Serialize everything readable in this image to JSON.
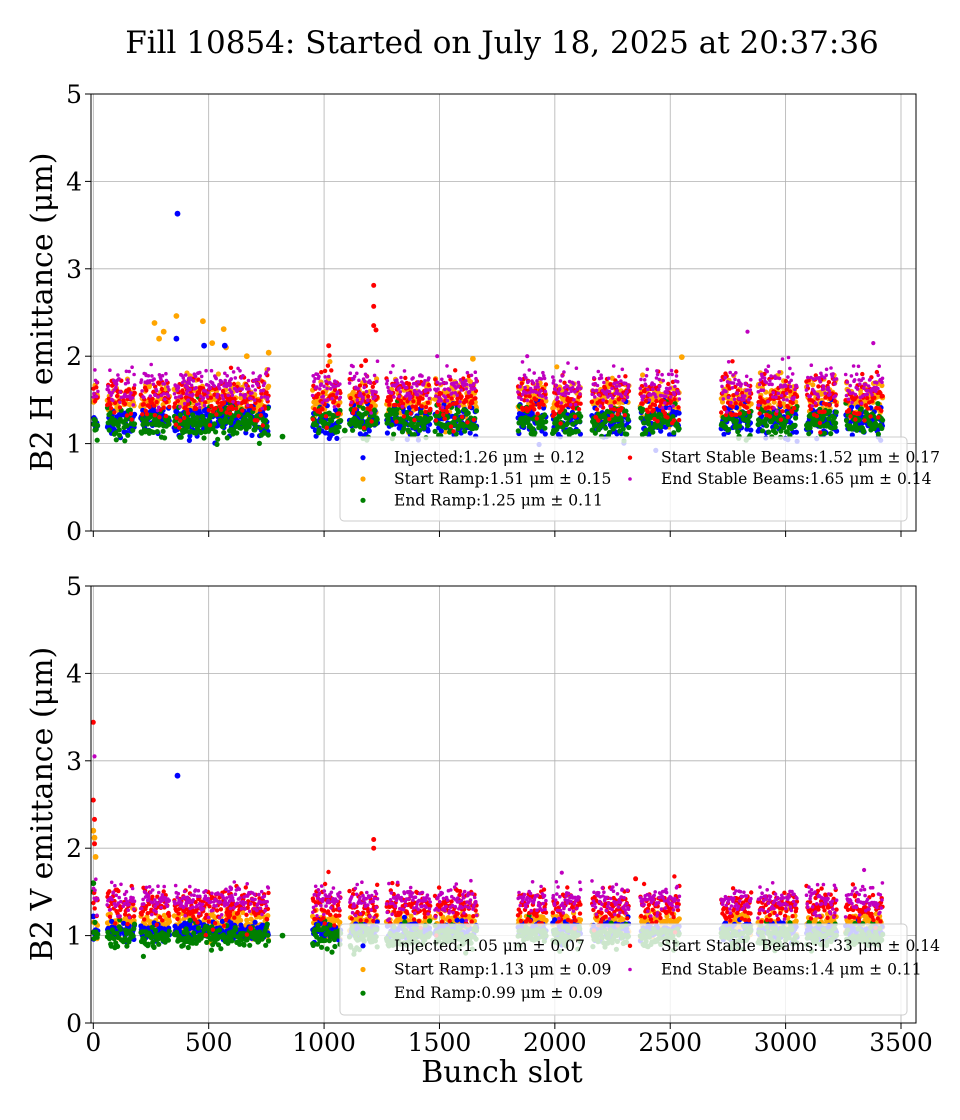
{
  "title": "Fill 10854: Started on July 18, 2025 at 20:37:36",
  "xlabel": "Bunch slot",
  "chart_data": [
    {
      "type": "scatter",
      "panel": "top",
      "ylabel": "B2 H emittance (μm)",
      "xlim": [
        -10,
        3565
      ],
      "ylim": [
        0,
        5
      ],
      "x_ticks": [
        0,
        500,
        1000,
        1500,
        2000,
        2500,
        3000,
        3500
      ],
      "y_ticks": [
        0,
        1,
        2,
        3,
        4,
        5
      ],
      "x_tick_labels_visible": false,
      "grid": true,
      "legend_position": "lower-right",
      "trains": [
        [
          0,
          20
        ],
        [
          60,
          120
        ],
        [
          130,
          180
        ],
        [
          205,
          330
        ],
        [
          350,
          420
        ],
        [
          400,
          460
        ],
        [
          460,
          600
        ],
        [
          590,
          760
        ],
        [
          950,
          1070
        ],
        [
          1110,
          1230
        ],
        [
          1270,
          1460
        ],
        [
          1480,
          1660
        ],
        [
          1840,
          1960
        ],
        [
          1990,
          2110
        ],
        [
          2160,
          2320
        ],
        [
          2370,
          2540
        ],
        [
          2720,
          2850
        ],
        [
          2880,
          3050
        ],
        [
          3090,
          3220
        ],
        [
          3260,
          3420
        ]
      ],
      "series": [
        {
          "name": "Start Ramp",
          "label_value": "1.51",
          "label_std": "0.15",
          "mean": 1.51,
          "std": 0.15,
          "color": "#ffa500",
          "radius": 2.6,
          "outliers": [
            [
              265,
              2.38
            ],
            [
              285,
              2.2
            ],
            [
              305,
              2.28
            ],
            [
              360,
              2.46
            ],
            [
              475,
              2.4
            ],
            [
              515,
              2.15
            ],
            [
              565,
              2.31
            ],
            [
              575,
              2.1
            ],
            [
              665,
              2.0
            ],
            [
              760,
              2.04
            ],
            [
              1645,
              1.97
            ],
            [
              2550,
              1.99
            ]
          ]
        },
        {
          "name": "Injected",
          "label_value": "1.26",
          "label_std": "0.12",
          "mean": 1.26,
          "std": 0.12,
          "color": "#0000ff",
          "radius": 2.6,
          "outliers": [
            [
              365,
              3.63
            ],
            [
              360,
              2.2
            ],
            [
              480,
              2.12
            ],
            [
              570,
              2.12
            ]
          ]
        },
        {
          "name": "End Ramp",
          "label_value": "1.25",
          "label_std": "0.11",
          "mean": 1.25,
          "std": 0.11,
          "color": "#008000",
          "radius": 2.6,
          "outliers": [
            [
              820,
              1.08
            ],
            [
              1090,
              1.15
            ]
          ]
        },
        {
          "name": "Start Stable Beams",
          "label_value": "1.52",
          "label_std": "0.17",
          "mean": 1.52,
          "std": 0.17,
          "color": "#ff0000",
          "radius": 2.2,
          "outliers": [
            [
              1215,
              2.81
            ],
            [
              1215,
              2.57
            ],
            [
              1215,
              2.35
            ],
            [
              1225,
              2.3
            ],
            [
              1020,
              2.12
            ],
            [
              1180,
              1.95
            ]
          ]
        },
        {
          "name": "End Stable Beams",
          "label_value": "1.65",
          "label_std": "0.14",
          "mean": 1.65,
          "std": 0.14,
          "color": "#bf00bf",
          "radius": 1.8,
          "outliers": [
            [
              2835,
              2.28
            ],
            [
              3380,
              2.15
            ],
            [
              1490,
              2.0
            ],
            [
              1880,
              2.0
            ]
          ]
        }
      ],
      "legend_rows": [
        [
          "Injected",
          "Start Stable Beams"
        ],
        [
          "Start Ramp",
          "End Stable Beams"
        ],
        [
          "End Ramp",
          null
        ]
      ]
    },
    {
      "type": "scatter",
      "panel": "bottom",
      "ylabel": "B2 V emittance (μm)",
      "xlim": [
        -10,
        3565
      ],
      "ylim": [
        0,
        5
      ],
      "x_ticks": [
        0,
        500,
        1000,
        1500,
        2000,
        2500,
        3000,
        3500
      ],
      "x_tick_labels": [
        "0",
        "500",
        "1000",
        "1500",
        "2000",
        "2500",
        "3000",
        "3500"
      ],
      "y_ticks": [
        0,
        1,
        2,
        3,
        4,
        5
      ],
      "grid": true,
      "legend_position": "lower-right",
      "trains": [
        [
          0,
          20
        ],
        [
          60,
          120
        ],
        [
          130,
          180
        ],
        [
          205,
          330
        ],
        [
          350,
          420
        ],
        [
          400,
          460
        ],
        [
          460,
          600
        ],
        [
          590,
          760
        ],
        [
          950,
          1070
        ],
        [
          1110,
          1230
        ],
        [
          1270,
          1460
        ],
        [
          1480,
          1660
        ],
        [
          1840,
          1960
        ],
        [
          1990,
          2110
        ],
        [
          2160,
          2320
        ],
        [
          2370,
          2540
        ],
        [
          2720,
          2850
        ],
        [
          2880,
          3050
        ],
        [
          3090,
          3220
        ],
        [
          3260,
          3420
        ]
      ],
      "series": [
        {
          "name": "Start Ramp",
          "label_value": "1.13",
          "label_std": "0.09",
          "mean": 1.13,
          "std": 0.09,
          "color": "#ffa500",
          "radius": 2.6,
          "outliers": [
            [
              0,
              2.2
            ],
            [
              5,
              2.12
            ],
            [
              10,
              1.9
            ]
          ]
        },
        {
          "name": "Injected",
          "label_value": "1.05",
          "label_std": "0.07",
          "mean": 1.05,
          "std": 0.07,
          "color": "#0000ff",
          "radius": 2.6,
          "outliers": [
            [
              365,
              2.83
            ],
            [
              0,
              1.22
            ]
          ]
        },
        {
          "name": "End Ramp",
          "label_value": "0.99",
          "label_std": "0.09",
          "mean": 0.99,
          "std": 0.09,
          "color": "#008000",
          "radius": 2.6,
          "outliers": [
            [
              0,
              1.6
            ],
            [
              0,
              1.5
            ],
            [
              820,
              1.0
            ]
          ]
        },
        {
          "name": "Start Stable Beams",
          "label_value": "1.33",
          "label_std": "0.14",
          "mean": 1.33,
          "std": 0.14,
          "color": "#ff0000",
          "radius": 2.2,
          "outliers": [
            [
              0,
              3.44
            ],
            [
              0,
              2.55
            ],
            [
              5,
              2.33
            ],
            [
              5,
              2.05
            ],
            [
              1215,
              2.1
            ],
            [
              1215,
              2.0
            ],
            [
              2350,
              1.65
            ]
          ]
        },
        {
          "name": "End Stable Beams",
          "label_value": "1.4",
          "label_std": "0.11",
          "mean": 1.4,
          "std": 0.11,
          "color": "#bf00bf",
          "radius": 1.8,
          "outliers": [
            [
              5,
              3.05
            ],
            [
              3340,
              1.75
            ],
            [
              2030,
              1.72
            ]
          ]
        }
      ],
      "legend_rows": [
        [
          "Injected",
          "Start Stable Beams"
        ],
        [
          "Start Ramp",
          "End Stable Beams"
        ],
        [
          "End Ramp",
          null
        ]
      ]
    }
  ]
}
